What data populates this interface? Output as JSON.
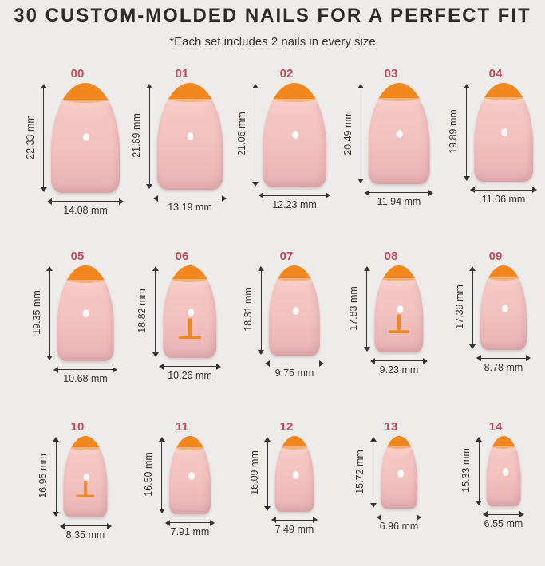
{
  "header": {
    "title": "30 CUSTOM-MOLDED NAILS FOR A PERFECT FIT",
    "subtitle": "*Each set includes 2 nails in every size"
  },
  "colors": {
    "background": "#eeecea",
    "nail_base": "#f3c2bf",
    "tip_accent": "#f2871e",
    "size_number": "#c24b5a"
  },
  "logo_glyph": "⊥",
  "nails": [
    {
      "size": "00",
      "length": "22.33 mm",
      "width": "14.08 mm",
      "logo": false
    },
    {
      "size": "01",
      "length": "21.69 mm",
      "width": "13.19 mm",
      "logo": false
    },
    {
      "size": "02",
      "length": "21.06 mm",
      "width": "12.23 mm",
      "logo": false
    },
    {
      "size": "03",
      "length": "20.49 mm",
      "width": "11.94 mm",
      "logo": false
    },
    {
      "size": "04",
      "length": "19.89 mm",
      "width": "11.06 mm",
      "logo": false
    },
    {
      "size": "05",
      "length": "19.35 mm",
      "width": "10.68 mm",
      "logo": false
    },
    {
      "size": "06",
      "length": "18.82 mm",
      "width": "10.26 mm",
      "logo": true
    },
    {
      "size": "07",
      "length": "18.31 mm",
      "width": "9.75 mm",
      "logo": false
    },
    {
      "size": "08",
      "length": "17.83 mm",
      "width": "9.23 mm",
      "logo": true
    },
    {
      "size": "09",
      "length": "17.39 mm",
      "width": "8.78 mm",
      "logo": false
    },
    {
      "size": "10",
      "length": "16.95 mm",
      "width": "8.35 mm",
      "logo": true
    },
    {
      "size": "11",
      "length": "16.50 mm",
      "width": "7.91 mm",
      "logo": false
    },
    {
      "size": "12",
      "length": "16.09 mm",
      "width": "7.49 mm",
      "logo": false
    },
    {
      "size": "13",
      "length": "15.72 mm",
      "width": "6.96 mm",
      "logo": false
    },
    {
      "size": "14",
      "length": "15.33 mm",
      "width": "6.55 mm",
      "logo": false
    }
  ]
}
